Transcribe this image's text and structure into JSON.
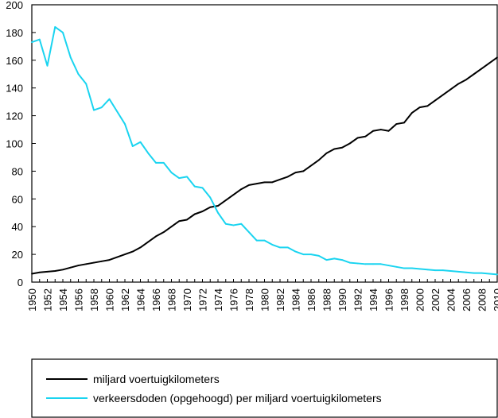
{
  "chart_data": {
    "type": "line",
    "xlim": [
      1950,
      2010
    ],
    "ylim": [
      0,
      200
    ],
    "yticks": [
      0,
      20,
      40,
      60,
      80,
      100,
      120,
      140,
      160,
      180,
      200
    ],
    "xticks": [
      1950,
      1952,
      1954,
      1956,
      1958,
      1960,
      1962,
      1964,
      1966,
      1968,
      1970,
      1972,
      1974,
      1976,
      1978,
      1980,
      1982,
      1984,
      1986,
      1988,
      1990,
      1992,
      1994,
      1996,
      1998,
      2000,
      2002,
      2004,
      2006,
      2008,
      2010
    ],
    "grid": false,
    "legend_position": "bottom",
    "x": [
      1950,
      1951,
      1952,
      1953,
      1954,
      1955,
      1956,
      1957,
      1958,
      1959,
      1960,
      1961,
      1962,
      1963,
      1964,
      1965,
      1966,
      1967,
      1968,
      1969,
      1970,
      1971,
      1972,
      1973,
      1974,
      1975,
      1976,
      1977,
      1978,
      1979,
      1980,
      1981,
      1982,
      1983,
      1984,
      1985,
      1986,
      1987,
      1988,
      1989,
      1990,
      1991,
      1992,
      1993,
      1994,
      1995,
      1996,
      1997,
      1998,
      1999,
      2000,
      2001,
      2002,
      2003,
      2004,
      2005,
      2006,
      2007,
      2008,
      2009,
      2010
    ],
    "series": [
      {
        "name": "miljard voertuigkilometers",
        "color": "#000000",
        "values": [
          6,
          7,
          7.5,
          8,
          9,
          10.5,
          12,
          13,
          14,
          15,
          16,
          18,
          20,
          22,
          25,
          29,
          33,
          36,
          40,
          44,
          45,
          49,
          51,
          54,
          55,
          59,
          63,
          67,
          70,
          71,
          72,
          72,
          74,
          76,
          79,
          80,
          84,
          88,
          93,
          96,
          97,
          100,
          104,
          105,
          109,
          110,
          109,
          114,
          115,
          122,
          126,
          127,
          131,
          135,
          139,
          143,
          146,
          150,
          154,
          158,
          162
        ]
      },
      {
        "name": "verkeersdoden (opgehoogd) per miljard voertuigkilometers",
        "color": "#1ad4f0",
        "values": [
          173,
          175,
          156,
          184,
          180,
          162,
          150,
          143,
          124,
          126,
          132,
          123,
          114,
          98,
          101,
          93,
          86,
          86,
          79,
          75,
          76,
          69,
          68,
          61,
          50,
          42,
          41,
          42,
          36,
          30,
          30,
          27,
          25,
          25,
          22,
          20,
          20,
          19,
          16,
          17,
          16,
          14,
          13.5,
          13,
          13,
          13,
          12,
          11,
          10,
          10,
          9.5,
          9,
          8.5,
          8.5,
          8,
          7.5,
          7,
          6.5,
          6.5,
          6,
          5.5
        ]
      }
    ]
  }
}
